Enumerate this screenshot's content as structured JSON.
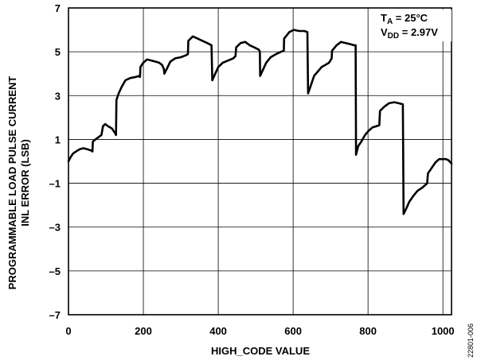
{
  "chart_data": {
    "type": "line",
    "xlabel": "HIGH_CODE VALUE",
    "ylabel_lines": [
      "PROGRAMMABLE LOAD PULSE CURRENT",
      "INL ERROR (LSB)"
    ],
    "xlim": [
      0,
      1023
    ],
    "ylim": [
      -7,
      7
    ],
    "x_ticks": [
      0,
      200,
      400,
      600,
      800,
      1000
    ],
    "y_ticks": [
      -7,
      -5,
      -3,
      -1,
      1,
      3,
      5,
      7
    ],
    "x_tick_labels": [
      "0",
      "200",
      "400",
      "600",
      "800",
      "1000"
    ],
    "y_tick_labels": [
      "–7",
      "–5",
      "–3",
      "–1",
      "1",
      "3",
      "5",
      "7"
    ],
    "grid": true,
    "annotations": {
      "ta": {
        "main": "T",
        "sub": "A",
        "rest": " = 25°C"
      },
      "vdd": {
        "main": "V",
        "sub": "DD",
        "rest": " = 2.97V"
      }
    },
    "figure_id": "22801-006",
    "series": [
      {
        "points": [
          [
            0,
            0.0
          ],
          [
            6,
            0.2
          ],
          [
            12,
            0.35
          ],
          [
            20,
            0.45
          ],
          [
            30,
            0.55
          ],
          [
            40,
            0.6
          ],
          [
            50,
            0.55
          ],
          [
            60,
            0.5
          ],
          [
            64,
            0.45
          ],
          [
            65,
            0.9
          ],
          [
            72,
            1.0
          ],
          [
            80,
            1.1
          ],
          [
            88,
            1.2
          ],
          [
            92,
            1.6
          ],
          [
            98,
            1.7
          ],
          [
            106,
            1.6
          ],
          [
            116,
            1.5
          ],
          [
            124,
            1.3
          ],
          [
            127,
            1.2
          ],
          [
            128,
            2.8
          ],
          [
            134,
            3.1
          ],
          [
            142,
            3.4
          ],
          [
            152,
            3.7
          ],
          [
            165,
            3.8
          ],
          [
            180,
            3.85
          ],
          [
            189,
            3.9
          ],
          [
            191,
            3.85
          ],
          [
            192,
            4.3
          ],
          [
            200,
            4.5
          ],
          [
            210,
            4.65
          ],
          [
            222,
            4.6
          ],
          [
            232,
            4.55
          ],
          [
            242,
            4.5
          ],
          [
            250,
            4.4
          ],
          [
            255,
            4.2
          ],
          [
            256,
            4.0
          ],
          [
            262,
            4.2
          ],
          [
            272,
            4.55
          ],
          [
            285,
            4.7
          ],
          [
            300,
            4.75
          ],
          [
            315,
            4.85
          ],
          [
            319,
            4.9
          ],
          [
            320,
            5.5
          ],
          [
            332,
            5.7
          ],
          [
            345,
            5.6
          ],
          [
            358,
            5.5
          ],
          [
            370,
            5.4
          ],
          [
            382,
            5.3
          ],
          [
            384,
            3.7
          ],
          [
            392,
            4.0
          ],
          [
            400,
            4.3
          ],
          [
            412,
            4.5
          ],
          [
            426,
            4.6
          ],
          [
            440,
            4.7
          ],
          [
            446,
            4.8
          ],
          [
            448,
            5.2
          ],
          [
            460,
            5.4
          ],
          [
            472,
            5.45
          ],
          [
            484,
            5.3
          ],
          [
            496,
            5.2
          ],
          [
            508,
            5.1
          ],
          [
            511,
            5.0
          ],
          [
            512,
            3.9
          ],
          [
            520,
            4.2
          ],
          [
            528,
            4.5
          ],
          [
            540,
            4.75
          ],
          [
            555,
            4.9
          ],
          [
            568,
            5.0
          ],
          [
            575,
            5.05
          ],
          [
            576,
            5.6
          ],
          [
            590,
            5.9
          ],
          [
            602,
            6.0
          ],
          [
            616,
            5.95
          ],
          [
            630,
            5.95
          ],
          [
            638,
            5.9
          ],
          [
            640,
            3.1
          ],
          [
            648,
            3.5
          ],
          [
            656,
            3.9
          ],
          [
            666,
            4.1
          ],
          [
            676,
            4.3
          ],
          [
            686,
            4.4
          ],
          [
            696,
            4.5
          ],
          [
            703,
            4.7
          ],
          [
            704,
            5.05
          ],
          [
            716,
            5.3
          ],
          [
            728,
            5.45
          ],
          [
            740,
            5.4
          ],
          [
            752,
            5.35
          ],
          [
            762,
            5.3
          ],
          [
            767,
            5.3
          ],
          [
            768,
            0.3
          ],
          [
            774,
            0.7
          ],
          [
            782,
            0.9
          ],
          [
            792,
            1.2
          ],
          [
            802,
            1.4
          ],
          [
            812,
            1.55
          ],
          [
            822,
            1.6
          ],
          [
            830,
            1.65
          ],
          [
            832,
            2.3
          ],
          [
            844,
            2.5
          ],
          [
            856,
            2.65
          ],
          [
            870,
            2.7
          ],
          [
            882,
            2.65
          ],
          [
            893,
            2.6
          ],
          [
            895,
            -2.4
          ],
          [
            901,
            -2.2
          ],
          [
            910,
            -1.85
          ],
          [
            920,
            -1.6
          ],
          [
            932,
            -1.35
          ],
          [
            945,
            -1.2
          ],
          [
            958,
            -1.0
          ],
          [
            960,
            -0.55
          ],
          [
            970,
            -0.3
          ],
          [
            980,
            -0.05
          ],
          [
            990,
            0.1
          ],
          [
            1000,
            0.1
          ],
          [
            1008,
            0.1
          ],
          [
            1015,
            0.05
          ],
          [
            1023,
            -0.1
          ]
        ]
      }
    ]
  }
}
